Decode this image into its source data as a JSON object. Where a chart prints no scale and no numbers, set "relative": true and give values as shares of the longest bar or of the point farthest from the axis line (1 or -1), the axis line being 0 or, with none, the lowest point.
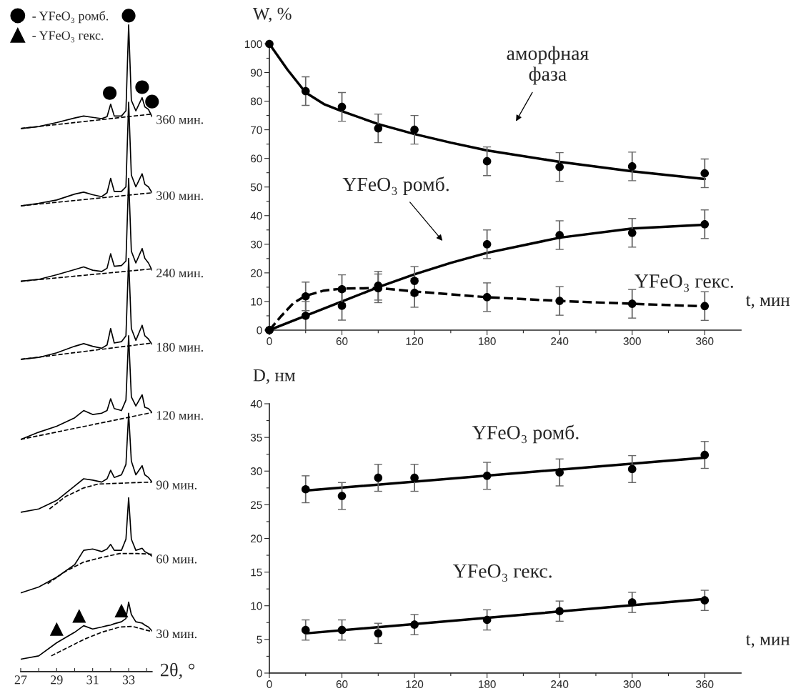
{
  "chart_data": [
    {
      "type": "line",
      "relative": true,
      "xlabel": "2θ, °",
      "xlim": [
        27,
        34.3
      ],
      "xticks": [
        27,
        {
          "value": 28,
          "label": null
        },
        29,
        {
          "value": 30,
          "label": null
        },
        31,
        {
          "value": 32,
          "label": null
        },
        33,
        {
          "value": 34,
          "label": null
        }
      ],
      "tick_labels": "x",
      "legend": "top left",
      "x": [
        27.0,
        28.0,
        29.0,
        30.0,
        30.5,
        31.0,
        31.5,
        31.8,
        32.0,
        32.2,
        32.6,
        32.85,
        33.0,
        33.15,
        33.4,
        33.75,
        33.9,
        34.1,
        34.3
      ],
      "series": [
        {
          "name": "360 мин.",
          "color": "#000000",
          "values": [
            0.828,
            0.831,
            0.837,
            0.844,
            0.847,
            0.845,
            0.843,
            0.846,
            0.865,
            0.847,
            0.847,
            0.855,
            0.986,
            0.871,
            0.855,
            0.875,
            0.861,
            0.857,
            0.846
          ]
        },
        {
          "color": "#000000",
          "line_style": "dashed",
          "x": [
            27.0,
            34.3
          ],
          "values": [
            0.828,
            0.85
          ]
        },
        {
          "name": "300 мин.",
          "color": "#000000",
          "values": [
            0.71,
            0.714,
            0.719,
            0.728,
            0.731,
            0.727,
            0.724,
            0.73,
            0.752,
            0.732,
            0.732,
            0.739,
            0.868,
            0.757,
            0.739,
            0.759,
            0.743,
            0.739,
            0.73
          ]
        },
        {
          "color": "#000000",
          "line_style": "dashed",
          "x": [
            27.0,
            34.3
          ],
          "values": [
            0.71,
            0.73
          ]
        },
        {
          "name": "240 мин.",
          "color": "#000000",
          "values": [
            0.595,
            0.598,
            0.605,
            0.613,
            0.617,
            0.612,
            0.61,
            0.615,
            0.637,
            0.618,
            0.619,
            0.626,
            0.752,
            0.641,
            0.623,
            0.645,
            0.63,
            0.623,
            0.612
          ]
        },
        {
          "color": "#000000",
          "line_style": "dashed",
          "x": [
            27.0,
            34.3
          ],
          "values": [
            0.595,
            0.614
          ]
        },
        {
          "name": "180 мин.",
          "color": "#000000",
          "values": [
            0.476,
            0.479,
            0.486,
            0.496,
            0.5,
            0.496,
            0.493,
            0.498,
            0.523,
            0.501,
            0.503,
            0.512,
            0.63,
            0.523,
            0.505,
            0.528,
            0.512,
            0.507,
            0.499
          ]
        },
        {
          "color": "#000000",
          "line_style": "dashed",
          "x": [
            27.0,
            34.3
          ],
          "values": [
            0.476,
            0.501
          ]
        },
        {
          "name": "120 мин.",
          "color": "#000000",
          "values": [
            0.354,
            0.365,
            0.374,
            0.387,
            0.398,
            0.392,
            0.394,
            0.398,
            0.416,
            0.401,
            0.398,
            0.414,
            0.512,
            0.419,
            0.405,
            0.422,
            0.403,
            0.401,
            0.395
          ]
        },
        {
          "color": "#000000",
          "line_style": "dashed",
          "x": [
            27.0,
            34.3
          ],
          "values": [
            0.354,
            0.395
          ]
        },
        {
          "name": "90 мин.",
          "color": "#000000",
          "values": [
            0.243,
            0.248,
            0.261,
            0.283,
            0.294,
            0.292,
            0.289,
            0.294,
            0.307,
            0.296,
            0.3,
            0.316,
            0.394,
            0.321,
            0.3,
            0.314,
            0.3,
            0.296,
            0.289
          ]
        },
        {
          "color": "#000000",
          "line_style": "dashed",
          "x": [
            28.6,
            29.5,
            30.5,
            31.3,
            34.3
          ],
          "values": [
            0.248,
            0.267,
            0.28,
            0.286,
            0.289
          ]
        },
        {
          "name": "60 мин.",
          "color": "#000000",
          "values": [
            0.12,
            0.129,
            0.144,
            0.163,
            0.185,
            0.187,
            0.183,
            0.187,
            0.194,
            0.185,
            0.185,
            0.202,
            0.265,
            0.202,
            0.185,
            0.188,
            0.183,
            0.18,
            0.176
          ]
        },
        {
          "color": "#000000",
          "line_style": "dashed",
          "x": [
            28.5,
            29.5,
            30.5,
            31.5,
            32.5,
            33.5,
            34.3
          ],
          "values": [
            0.134,
            0.153,
            0.167,
            0.174,
            0.18,
            0.18,
            0.179
          ]
        },
        {
          "name": "30 мин.",
          "color": "#000000",
          "values": [
            0.019,
            0.024,
            0.044,
            0.06,
            0.07,
            0.065,
            0.068,
            0.07,
            0.071,
            0.073,
            0.076,
            0.081,
            0.106,
            0.087,
            0.076,
            0.074,
            0.071,
            0.068,
            0.062
          ]
        },
        {
          "color": "#000000",
          "line_style": "dashed",
          "x": [
            28.7,
            30.5,
            31.5,
            32.5,
            33.2,
            34.3
          ],
          "values": [
            0.024,
            0.049,
            0.06,
            0.068,
            0.069,
            0.061
          ]
        },
        {
          "type": "scatter",
          "name": "- YFeO₃ ромб.",
          "color": "#000000",
          "marker": "circle",
          "x": [
            31.95,
            33.0,
            33.75,
            34.3
          ],
          "values": [
            0.882,
            1.0,
            0.891,
            0.869
          ]
        },
        {
          "type": "scatter",
          "name": "- YFeO₃ гекс.",
          "color": "#000000",
          "marker": "triangle",
          "x": [
            29.0,
            30.25,
            32.6
          ],
          "values": [
            0.065,
            0.085,
            0.093
          ]
        }
      ]
    },
    {
      "type": "scatter",
      "xlabel": "t, мин",
      "ylabel": "W, %",
      "xlim": [
        0,
        390
      ],
      "xticks": [
        0,
        {
          "value": 30,
          "label": null
        },
        60,
        {
          "value": 90,
          "label": null
        },
        120,
        {
          "value": 150,
          "label": null
        },
        180,
        {
          "value": 210,
          "label": null
        },
        240,
        {
          "value": 270,
          "label": null
        },
        300,
        {
          "value": 330,
          "label": null
        },
        360
      ],
      "ylim": [
        0,
        100
      ],
      "yticks": [
        0,
        {
          "value": 5,
          "label": null
        },
        10,
        {
          "value": 15,
          "label": null
        },
        20,
        {
          "value": 25,
          "label": null
        },
        30,
        {
          "value": 35,
          "label": null
        },
        40,
        {
          "value": 45,
          "label": null
        },
        50,
        {
          "value": 55,
          "label": null
        },
        60,
        {
          "value": 65,
          "label": null
        },
        70,
        {
          "value": 75,
          "label": null
        },
        80,
        {
          "value": 85,
          "label": null
        },
        90,
        {
          "value": 95,
          "label": null
        },
        100
      ],
      "annotations": [
        "аморфная\nфаза",
        "YFeO₃ ромб.",
        "YFeO₃ гекс."
      ],
      "x": [
        0,
        30,
        60,
        90,
        120,
        180,
        240,
        300,
        360
      ],
      "series": [
        {
          "color": "#000000",
          "marker": "circle",
          "values": [
            100,
            83.5,
            78,
            70.5,
            70,
            59,
            57,
            57.2,
            54.8
          ],
          "errors": [
            null,
            5,
            5,
            5,
            5,
            5,
            5,
            5,
            5
          ]
        },
        {
          "color": "#000000",
          "marker": "circle",
          "values": [
            0,
            5,
            8.5,
            15.5,
            17.2,
            30,
            33.2,
            34,
            37
          ],
          "errors": [
            null,
            5,
            5,
            5,
            5,
            5,
            5,
            5,
            5
          ]
        },
        {
          "color": "#000000",
          "marker": "circle",
          "values": [
            0,
            11.8,
            14.3,
            14.6,
            13,
            11.5,
            10.2,
            9.2,
            8.4
          ],
          "errors": [
            null,
            5,
            5,
            5,
            5,
            5,
            5,
            5,
            5
          ]
        },
        {
          "type": "line",
          "color": "#000000",
          "x": [
            0,
            15,
            30,
            45,
            60,
            90,
            120,
            150,
            180,
            240,
            300,
            360
          ],
          "values": [
            100,
            91,
            83,
            79,
            76.5,
            72,
            68.5,
            65.5,
            62.8,
            58.8,
            55.5,
            52.8
          ]
        },
        {
          "type": "line",
          "color": "#000000",
          "x": [
            0,
            30,
            60,
            90,
            120,
            150,
            180,
            240,
            300,
            360
          ],
          "values": [
            0,
            5,
            10,
            15,
            19.5,
            23.5,
            27,
            32.3,
            35.5,
            36.8
          ]
        },
        {
          "type": "line",
          "color": "#000000",
          "line_style": "dashed",
          "x": [
            0,
            10,
            20,
            30,
            45,
            60,
            90,
            120,
            180,
            240,
            300,
            360
          ],
          "values": [
            0,
            5,
            9.5,
            12,
            13.8,
            14.5,
            14.7,
            13.5,
            11.5,
            10.2,
            9.2,
            8.3
          ]
        }
      ]
    },
    {
      "type": "scatter",
      "xlabel": "t, мин",
      "ylabel": "D, нм",
      "xlim": [
        0,
        390
      ],
      "xticks": [
        0,
        {
          "value": 30,
          "label": null
        },
        60,
        {
          "value": 90,
          "label": null
        },
        120,
        {
          "value": 150,
          "label": null
        },
        180,
        {
          "value": 210,
          "label": null
        },
        240,
        {
          "value": 270,
          "label": null
        },
        300,
        {
          "value": 330,
          "label": null
        },
        360
      ],
      "ylim": [
        0,
        40
      ],
      "yticks": [
        0,
        {
          "value": 2.5,
          "label": null
        },
        5,
        {
          "value": 7.5,
          "label": null
        },
        10,
        {
          "value": 12.5,
          "label": null
        },
        15,
        {
          "value": 17.5,
          "label": null
        },
        20,
        {
          "value": 22.5,
          "label": null
        },
        25,
        {
          "value": 27.5,
          "label": null
        },
        30,
        {
          "value": 32.5,
          "label": null
        },
        35,
        {
          "value": 37.5,
          "label": null
        },
        40
      ],
      "annotations": [
        "YFeO₃ ромб.",
        "YFeO₃ гекс."
      ],
      "x": [
        30,
        60,
        90,
        120,
        180,
        240,
        300,
        360
      ],
      "series": [
        {
          "color": "#000000",
          "marker": "circle",
          "values": [
            27.3,
            26.3,
            29,
            29,
            29.3,
            29.8,
            30.3,
            32.4
          ],
          "errors": [
            2,
            2,
            2,
            2,
            2,
            2,
            2,
            2
          ]
        },
        {
          "color": "#000000",
          "marker": "circle",
          "values": [
            6.4,
            6.4,
            5.9,
            7.2,
            7.9,
            9.2,
            10.5,
            10.8
          ],
          "errors": [
            1.5,
            1.5,
            1.5,
            1.5,
            1.5,
            1.5,
            1.5,
            1.5
          ]
        },
        {
          "type": "line",
          "color": "#000000",
          "x": [
            30,
            360
          ],
          "values": [
            27.1,
            32.0
          ]
        },
        {
          "type": "line",
          "color": "#000000",
          "x": [
            30,
            360
          ],
          "values": [
            5.9,
            11.0
          ]
        }
      ]
    }
  ]
}
